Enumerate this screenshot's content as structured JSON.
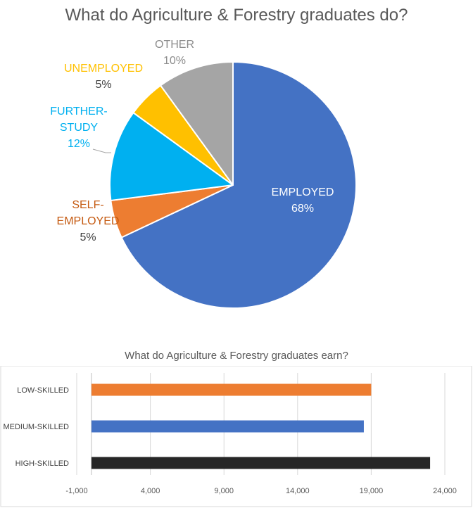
{
  "chart_data": [
    {
      "type": "pie",
      "title": "What do Agriculture & Forestry graduates do?",
      "slices": [
        {
          "name": "EMPLOYED",
          "lines": [
            "EMPLOYED"
          ],
          "value": 68,
          "label": "68%",
          "color": "#4472C4"
        },
        {
          "name": "SELF-EMPLOYED",
          "lines": [
            "SELF-",
            "EMPLOYED"
          ],
          "value": 5,
          "label": "5%",
          "color": "#ED7D31"
        },
        {
          "name": "FURTHER-STUDY",
          "lines": [
            "FURTHER-",
            "STUDY"
          ],
          "value": 12,
          "label": "12%",
          "color": "#00B0F0"
        },
        {
          "name": "UNEMPLOYED",
          "lines": [
            "UNEMPLOYED"
          ],
          "value": 5,
          "label": "5%",
          "color": "#FFC000"
        },
        {
          "name": "OTHER",
          "lines": [
            "OTHER"
          ],
          "value": 10,
          "label": "10%",
          "color": "#A5A5A5"
        }
      ]
    },
    {
      "type": "bar",
      "orientation": "horizontal",
      "title": "What do Agriculture & Forestry graduates earn?",
      "categories": [
        "LOW-SKILLED",
        "MEDIUM-SKILLED",
        "HIGH-SKILLED"
      ],
      "values": [
        19000,
        18500,
        23000
      ],
      "colors": [
        "#ED7D31",
        "#4472C4",
        "#262626"
      ],
      "xlim": [
        -1000,
        24000
      ],
      "xticks": [
        -1000,
        4000,
        9000,
        14000,
        19000,
        24000
      ],
      "xtick_labels": [
        "-1,000",
        "4,000",
        "9,000",
        "14,000",
        "19,000",
        "24,000"
      ],
      "grid": true
    }
  ]
}
